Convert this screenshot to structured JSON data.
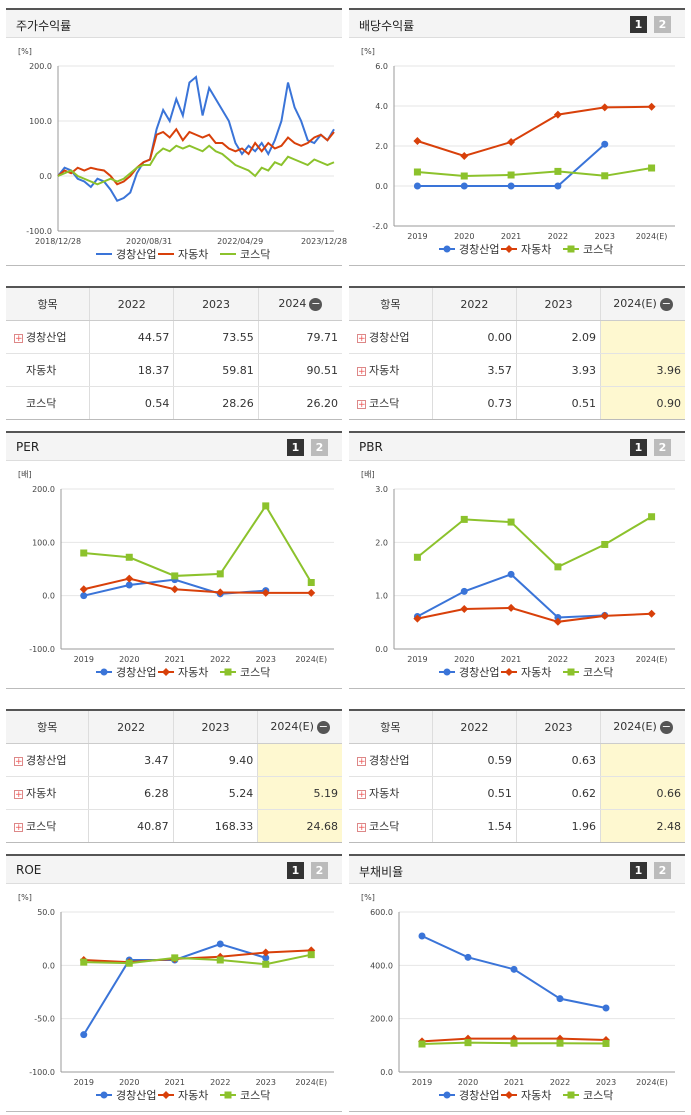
{
  "colors": {
    "company": "#3a74d8",
    "auto": "#d8400a",
    "kosdaq": "#8cc22c"
  },
  "legend": [
    "경창산업",
    "자동차",
    "코스닥"
  ],
  "panels": {
    "stock_return": {
      "title": "주가수익률"
    },
    "dividend": {
      "title": "배당수익률"
    },
    "per": {
      "title": "PER"
    },
    "pbr": {
      "title": "PBR"
    },
    "roe": {
      "title": "ROE"
    },
    "debt": {
      "title": "부채비율"
    }
  },
  "buttons": {
    "one": "1",
    "two": "2"
  },
  "tables": {
    "stock_return": {
      "headers": [
        "항목",
        "2022",
        "2023",
        "2024"
      ],
      "rows": [
        {
          "name": "경창산업",
          "plus": true,
          "values": [
            "44.57",
            "73.55",
            "79.71"
          ]
        },
        {
          "name": "자동차",
          "plus": false,
          "values": [
            "18.37",
            "59.81",
            "90.51"
          ]
        },
        {
          "name": "코스닥",
          "plus": false,
          "values": [
            "0.54",
            "28.26",
            "26.20"
          ]
        }
      ]
    },
    "dividend": {
      "headers": [
        "항목",
        "2022",
        "2023",
        "2024(E)"
      ],
      "rows": [
        {
          "name": "경창산업",
          "plus": true,
          "values": [
            "0.00",
            "2.09",
            ""
          ]
        },
        {
          "name": "자동차",
          "plus": true,
          "values": [
            "3.57",
            "3.93",
            "3.96"
          ]
        },
        {
          "name": "코스닥",
          "plus": true,
          "values": [
            "0.73",
            "0.51",
            "0.90"
          ]
        }
      ]
    },
    "per": {
      "headers": [
        "항목",
        "2022",
        "2023",
        "2024(E)"
      ],
      "rows": [
        {
          "name": "경창산업",
          "plus": true,
          "values": [
            "3.47",
            "9.40",
            ""
          ]
        },
        {
          "name": "자동차",
          "plus": true,
          "values": [
            "6.28",
            "5.24",
            "5.19"
          ]
        },
        {
          "name": "코스닥",
          "plus": true,
          "values": [
            "40.87",
            "168.33",
            "24.68"
          ]
        }
      ]
    },
    "pbr": {
      "headers": [
        "항목",
        "2022",
        "2023",
        "2024(E)"
      ],
      "rows": [
        {
          "name": "경창산업",
          "plus": true,
          "values": [
            "0.59",
            "0.63",
            ""
          ]
        },
        {
          "name": "자동차",
          "plus": true,
          "values": [
            "0.51",
            "0.62",
            "0.66"
          ]
        },
        {
          "name": "코스닥",
          "plus": true,
          "values": [
            "1.54",
            "1.96",
            "2.48"
          ]
        }
      ]
    }
  },
  "chart_data": [
    {
      "id": "stock_return",
      "type": "line",
      "unit": "[%]",
      "ylim": [
        -100,
        200
      ],
      "yticks": [
        "200.0",
        "100.0",
        "0.0",
        "-100.0"
      ],
      "xticks": [
        "2018/12/28",
        "2020/08/31",
        "2022/04/29",
        "2023/12/28"
      ],
      "series": [
        {
          "name": "경창산업",
          "values": [
            0,
            15,
            10,
            -5,
            -10,
            -20,
            -5,
            -10,
            -25,
            -45,
            -40,
            -30,
            5,
            25,
            30,
            85,
            120,
            100,
            140,
            110,
            170,
            180,
            110,
            160,
            140,
            120,
            100,
            60,
            40,
            55,
            45,
            60,
            40,
            65,
            100,
            170,
            125,
            100,
            65,
            60,
            75,
            65,
            85
          ]
        },
        {
          "name": "자동차",
          "values": [
            0,
            10,
            5,
            15,
            10,
            15,
            12,
            10,
            0,
            -15,
            -10,
            0,
            15,
            25,
            30,
            75,
            80,
            70,
            85,
            65,
            80,
            75,
            70,
            75,
            60,
            60,
            50,
            45,
            50,
            40,
            60,
            45,
            60,
            50,
            55,
            70,
            60,
            55,
            60,
            70,
            75,
            65,
            80
          ]
        },
        {
          "name": "코스닥",
          "values": [
            0,
            5,
            10,
            0,
            -5,
            -10,
            -15,
            -10,
            -5,
            -10,
            -5,
            5,
            15,
            20,
            20,
            40,
            50,
            45,
            55,
            50,
            55,
            50,
            45,
            55,
            45,
            40,
            30,
            20,
            15,
            10,
            0,
            15,
            10,
            25,
            20,
            35,
            30,
            25,
            20,
            30,
            25,
            20,
            25
          ]
        }
      ]
    },
    {
      "id": "dividend",
      "type": "line",
      "unit": "[%]",
      "ylim": [
        -2,
        6
      ],
      "yticks": [
        "6.0",
        "4.0",
        "2.0",
        "0.0",
        "-2.0"
      ],
      "categories": [
        "2019",
        "2020",
        "2021",
        "2022",
        "2023",
        "2024(E)"
      ],
      "series": [
        {
          "name": "경창산업",
          "values": [
            0.0,
            0.0,
            0.0,
            0.0,
            2.09,
            null
          ]
        },
        {
          "name": "자동차",
          "values": [
            2.25,
            1.5,
            2.2,
            3.57,
            3.93,
            3.96
          ]
        },
        {
          "name": "코스닥",
          "values": [
            0.7,
            0.5,
            0.55,
            0.73,
            0.51,
            0.9
          ]
        }
      ]
    },
    {
      "id": "per",
      "type": "line",
      "unit": "[배]",
      "ylim": [
        -100,
        200
      ],
      "yticks": [
        "200.0",
        "100.0",
        "0.0",
        "-100.0"
      ],
      "categories": [
        "2019",
        "2020",
        "2021",
        "2022",
        "2023",
        "2024(E)"
      ],
      "series": [
        {
          "name": "경창산업",
          "values": [
            0,
            20,
            30,
            3.47,
            9.4,
            null
          ]
        },
        {
          "name": "자동차",
          "values": [
            12,
            32,
            12,
            6.28,
            5.24,
            5.19
          ]
        },
        {
          "name": "코스닥",
          "values": [
            80,
            72,
            37,
            40.87,
            168.33,
            24.68
          ]
        }
      ]
    },
    {
      "id": "pbr",
      "type": "line",
      "unit": "[배]",
      "ylim": [
        0,
        3
      ],
      "yticks": [
        "3.0",
        "2.0",
        "1.0",
        "0.0"
      ],
      "categories": [
        "2019",
        "2020",
        "2021",
        "2022",
        "2023",
        "2024(E)"
      ],
      "series": [
        {
          "name": "경창산업",
          "values": [
            0.61,
            1.08,
            1.4,
            0.59,
            0.63,
            null
          ]
        },
        {
          "name": "자동차",
          "values": [
            0.57,
            0.75,
            0.77,
            0.51,
            0.62,
            0.66
          ]
        },
        {
          "name": "코스닥",
          "values": [
            1.72,
            2.43,
            2.38,
            1.54,
            1.96,
            2.48
          ]
        }
      ]
    },
    {
      "id": "roe",
      "type": "line",
      "unit": "[%]",
      "ylim": [
        -100,
        50
      ],
      "yticks": [
        "50.0",
        "0.0",
        "-50.0",
        "-100.0"
      ],
      "categories": [
        "2019",
        "2020",
        "2021",
        "2022",
        "2023",
        "2024(E)"
      ],
      "series": [
        {
          "name": "경창산업",
          "values": [
            -65,
            5,
            5,
            20,
            7,
            null
          ]
        },
        {
          "name": "자동차",
          "values": [
            5,
            3,
            6,
            8,
            12,
            14
          ]
        },
        {
          "name": "코스닥",
          "values": [
            3,
            2,
            7,
            5,
            1,
            10
          ]
        }
      ]
    },
    {
      "id": "debt",
      "type": "line",
      "unit": "[%]",
      "ylim": [
        0,
        600
      ],
      "yticks": [
        "600.0",
        "400.0",
        "200.0",
        "0.0"
      ],
      "categories": [
        "2019",
        "2020",
        "2021",
        "2022",
        "2023",
        "2024(E)"
      ],
      "series": [
        {
          "name": "경창산업",
          "values": [
            510,
            430,
            385,
            275,
            240,
            null
          ]
        },
        {
          "name": "자동차",
          "values": [
            115,
            125,
            125,
            125,
            120,
            null
          ]
        },
        {
          "name": "코스닥",
          "values": [
            105,
            110,
            108,
            108,
            107,
            null
          ]
        }
      ]
    }
  ]
}
